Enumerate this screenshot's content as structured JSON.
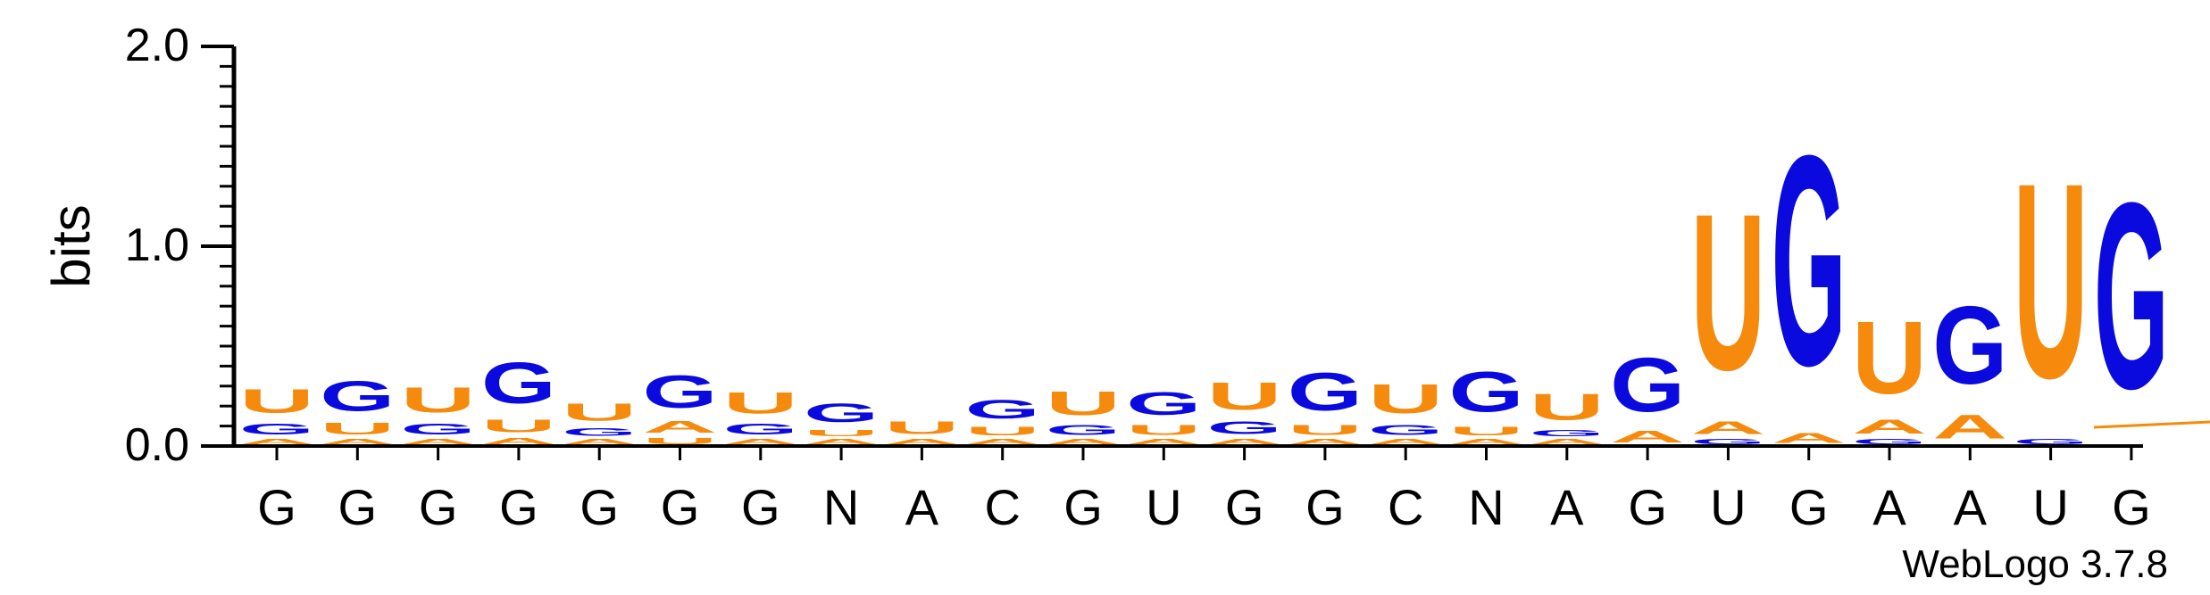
{
  "chart_data": {
    "type": "sequence-logo",
    "ylabel": "bits",
    "ylim": [
      0,
      2.0
    ],
    "yticks": [
      "0.0",
      "1.0",
      "2.0"
    ],
    "colors": {
      "G": "#0a0adf",
      "A": "#f58a0c",
      "U": "#f58a0c"
    },
    "consensus": [
      "G",
      "G",
      "G",
      "G",
      "G",
      "G",
      "G",
      "N",
      "A",
      "C",
      "G",
      "U",
      "G",
      "G",
      "C",
      "N",
      "A",
      "G",
      "U",
      "G",
      "A",
      "A",
      "U",
      "G"
    ],
    "stacks": [
      [
        [
          "A",
          0.04
        ],
        [
          "G",
          0.09
        ],
        [
          "U",
          0.19
        ]
      ],
      [
        [
          "A",
          0.04
        ],
        [
          "U",
          0.09
        ],
        [
          "G",
          0.24
        ]
      ],
      [
        [
          "A",
          0.04
        ],
        [
          "G",
          0.09
        ],
        [
          "U",
          0.2
        ]
      ],
      [
        [
          "A",
          0.05
        ],
        [
          "U",
          0.1
        ],
        [
          "G",
          0.33
        ]
      ],
      [
        [
          "A",
          0.04
        ],
        [
          "G",
          0.06
        ],
        [
          "U",
          0.14
        ]
      ],
      [
        [
          "U",
          0.05
        ],
        [
          "A",
          0.09
        ],
        [
          "G",
          0.26
        ]
      ],
      [
        [
          "A",
          0.04
        ],
        [
          "G",
          0.09
        ],
        [
          "U",
          0.17
        ]
      ],
      [
        [
          "A",
          0.04
        ],
        [
          "U",
          0.05
        ],
        [
          "G",
          0.15
        ]
      ],
      [
        [
          "A",
          0.04
        ],
        [
          "U",
          0.1
        ]
      ],
      [
        [
          "A",
          0.04
        ],
        [
          "U",
          0.07
        ],
        [
          "G",
          0.15
        ]
      ],
      [
        [
          "A",
          0.04
        ],
        [
          "G",
          0.08
        ],
        [
          "U",
          0.19
        ]
      ],
      [
        [
          "A",
          0.04
        ],
        [
          "U",
          0.08
        ],
        [
          "G",
          0.18
        ]
      ],
      [
        [
          "A",
          0.04
        ],
        [
          "G",
          0.1
        ],
        [
          "U",
          0.22
        ]
      ],
      [
        [
          "A",
          0.04
        ],
        [
          "U",
          0.08
        ],
        [
          "G",
          0.3
        ]
      ],
      [
        [
          "A",
          0.04
        ],
        [
          "G",
          0.08
        ],
        [
          "U",
          0.23
        ]
      ],
      [
        [
          "A",
          0.04
        ],
        [
          "U",
          0.07
        ],
        [
          "G",
          0.32
        ]
      ],
      [
        [
          "A",
          0.04
        ],
        [
          "G",
          0.05
        ],
        [
          "U",
          0.21
        ]
      ],
      [
        [
          "A",
          0.09
        ],
        [
          "G",
          0.43
        ]
      ],
      [
        [
          "G",
          0.04
        ],
        [
          "A",
          0.1
        ],
        [
          "U",
          1.25
        ]
      ],
      [
        [
          "A",
          0.08
        ],
        [
          "G",
          1.68
        ]
      ],
      [
        [
          "G",
          0.04
        ],
        [
          "A",
          0.11
        ],
        [
          "U",
          0.58
        ]
      ],
      [
        [
          "A",
          0.19
        ],
        [
          "G",
          0.62
        ]
      ],
      [
        [
          "G",
          0.04
        ],
        [
          "U",
          1.56
        ]
      ],
      [
        [
          "G",
          1.49
        ]
      ]
    ],
    "credit": "WebLogo 3.7.8"
  }
}
